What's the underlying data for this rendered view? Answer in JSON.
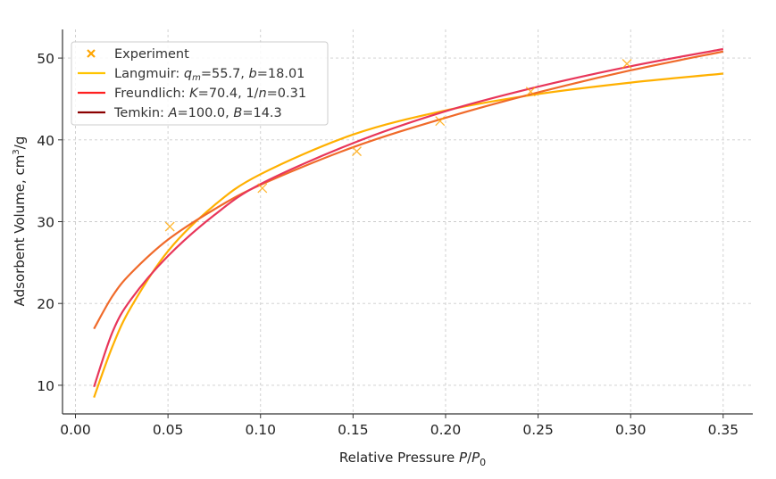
{
  "chart_data": {
    "type": "line",
    "title": "",
    "xlabel": "Relative Pressure P/P₀",
    "xlabel_parts": {
      "main": "Relative Pressure ",
      "var": "P",
      "slash": "/",
      "var2": "P",
      "sub": "0"
    },
    "ylabel": "Adsorbent Volume, cm³/g",
    "ylabel_parts": {
      "main": "Adsorbent Volume, cm",
      "sup": "3",
      "tail": "/g"
    },
    "xlim": [
      -0.007,
      0.366
    ],
    "ylim": [
      6.5,
      53.5
    ],
    "xticks": [
      0.0,
      0.05,
      0.1,
      0.15,
      0.2,
      0.25,
      0.3,
      0.35
    ],
    "xtick_labels": [
      "0.00",
      "0.05",
      "0.10",
      "0.15",
      "0.20",
      "0.25",
      "0.30",
      "0.35"
    ],
    "yticks": [
      10,
      20,
      30,
      40,
      50
    ],
    "ytick_labels": [
      "10",
      "20",
      "30",
      "40",
      "50"
    ],
    "grid": true,
    "legend_position": "top-left",
    "scatter": {
      "name": "Experiment",
      "color": "#FFA500",
      "x": [
        0.051,
        0.101,
        0.152,
        0.197,
        0.246,
        0.298
      ],
      "y": [
        29.4,
        34.1,
        38.6,
        42.3,
        45.9,
        49.3
      ]
    },
    "series": [
      {
        "name": "Langmuir",
        "legend": {
          "prefix": "Langmuir: ",
          "p1": "q",
          "p1sub": "m",
          "v1": "=55.7, ",
          "p2": "b",
          "v2": "=18.01"
        },
        "legend_color": "#FFC400",
        "color": "#FFB000",
        "x": [
          0.01,
          0.02,
          0.03,
          0.05,
          0.075,
          0.1,
          0.15,
          0.2,
          0.25,
          0.3,
          0.35
        ],
        "y": [
          8.5,
          14.75,
          19.54,
          26.4,
          32.0,
          35.8,
          40.65,
          43.6,
          45.6,
          47.0,
          48.1
        ]
      },
      {
        "name": "Freundlich",
        "legend": {
          "prefix": "Freundlich: ",
          "p1": "K",
          "v1": "=70.4, 1/",
          "p2": "n",
          "v2": "=0.31"
        },
        "legend_color": "#FF2020",
        "color": "#F06A2A",
        "x": [
          0.01,
          0.02,
          0.03,
          0.05,
          0.075,
          0.1,
          0.15,
          0.2,
          0.25,
          0.3,
          0.35
        ],
        "y": [
          16.9,
          20.9,
          23.7,
          27.8,
          31.5,
          34.5,
          39.1,
          42.7,
          45.8,
          48.5,
          50.8
        ]
      },
      {
        "name": "Temkin",
        "legend": {
          "prefix": "Temkin: ",
          "p1": "A",
          "v1": "=100.0, ",
          "p2": "B",
          "v2": "=14.3"
        },
        "legend_color": "#8B0000",
        "color": "#E8365A",
        "x": [
          0.01,
          0.02,
          0.03,
          0.05,
          0.075,
          0.1,
          0.15,
          0.2,
          0.25,
          0.3,
          0.35
        ],
        "y": [
          9.8,
          16.5,
          20.5,
          25.8,
          30.8,
          34.6,
          39.6,
          43.5,
          46.5,
          49.0,
          51.1
        ]
      }
    ]
  }
}
